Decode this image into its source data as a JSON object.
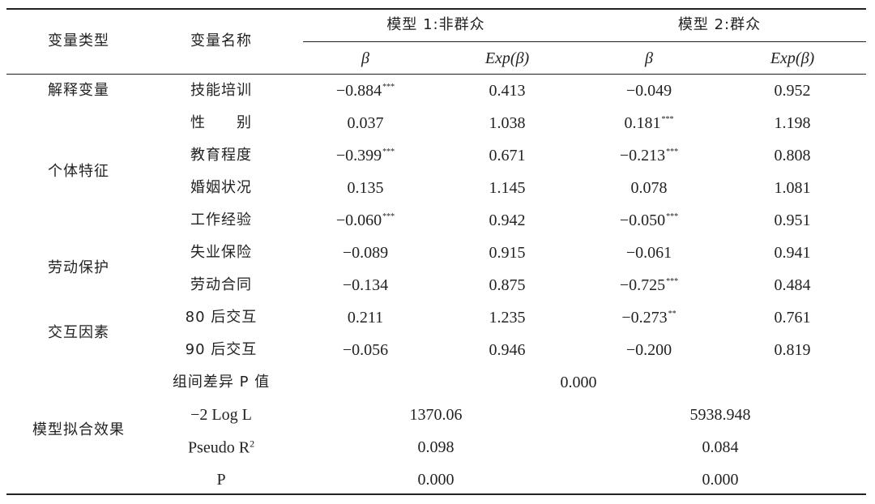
{
  "header": {
    "var_type": "变量类型",
    "var_name": "变量名称",
    "model1": "模型 1:非群众",
    "model2": "模型 2:群众",
    "beta": "β",
    "exp_beta": "Exp(β)"
  },
  "groups": {
    "explained": "解释变量",
    "individual": "个体特征",
    "labor": "劳动保护",
    "interaction": "交互因素",
    "fit": "模型拟合效果"
  },
  "rows": [
    {
      "name": "技能培训",
      "b1": "−0.884",
      "s1": "***",
      "e1": "0.413",
      "b2": "−0.049",
      "s2": "",
      "e2": "0.952"
    },
    {
      "name": "性　　别",
      "b1": "0.037",
      "s1": "",
      "e1": "1.038",
      "b2": "0.181",
      "s2": "***",
      "e2": "1.198"
    },
    {
      "name": "教育程度",
      "b1": "−0.399",
      "s1": "***",
      "e1": "0.671",
      "b2": "−0.213",
      "s2": "***",
      "e2": "0.808"
    },
    {
      "name": "婚姻状况",
      "b1": "0.135",
      "s1": "",
      "e1": "1.145",
      "b2": "0.078",
      "s2": "",
      "e2": "1.081"
    },
    {
      "name": "工作经验",
      "b1": "−0.060",
      "s1": "***",
      "e1": "0.942",
      "b2": "−0.050",
      "s2": "***",
      "e2": "0.951"
    },
    {
      "name": "失业保险",
      "b1": "−0.089",
      "s1": "",
      "e1": "0.915",
      "b2": "−0.061",
      "s2": "",
      "e2": "0.941"
    },
    {
      "name": "劳动合同",
      "b1": "−0.134",
      "s1": "",
      "e1": "0.875",
      "b2": "−0.725",
      "s2": "***",
      "e2": "0.484"
    },
    {
      "name": "80 后交互",
      "b1": "0.211",
      "s1": "",
      "e1": "1.235",
      "b2": "−0.273",
      "s2": "**",
      "e2": "0.761"
    },
    {
      "name": "90 后交互",
      "b1": "−0.056",
      "s1": "",
      "e1": "0.946",
      "b2": "−0.200",
      "s2": "",
      "e2": "0.819"
    }
  ],
  "group_diff": {
    "name": "组间差异 P 值",
    "value": "0.000"
  },
  "fit": [
    {
      "name": "−2 Log L",
      "m1": "1370.06",
      "m2": "5938.948"
    },
    {
      "name": "Pseudo R",
      "sup": "2",
      "m1": "0.098",
      "m2": "0.084"
    },
    {
      "name": "P",
      "m1": "0.000",
      "m2": "0.000"
    }
  ]
}
